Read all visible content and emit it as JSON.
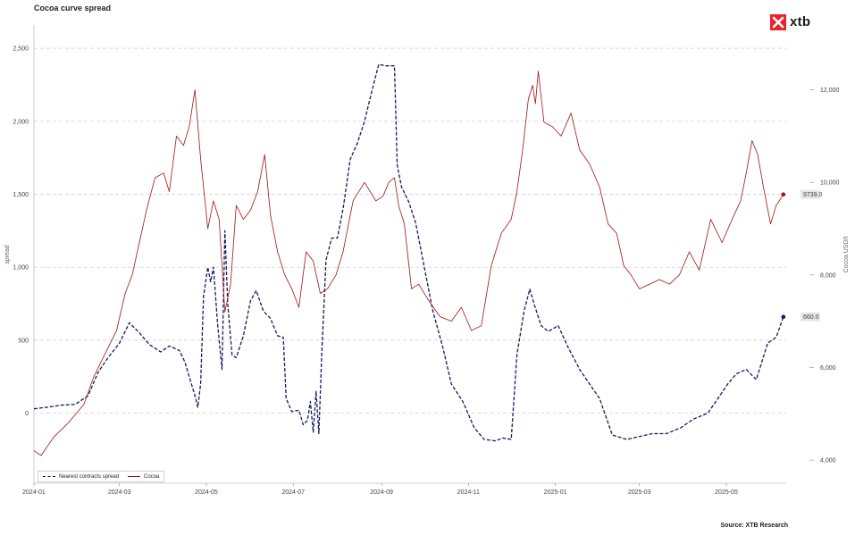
{
  "title": "Cocoa curve spread",
  "logo_text": "xtb",
  "source": "Source: XTB Research",
  "chart_data": {
    "type": "line",
    "title": "Cocoa curve spread",
    "ylabel": "spread",
    "y2label": "Cocoa USD/t",
    "xlim": [
      "2024-01-01",
      "2025-06-12"
    ],
    "ylim": [
      -480,
      2660
    ],
    "y2lim": [
      3500,
      13400
    ],
    "x_ticks": [
      "2024-01",
      "2024-03",
      "2024-05",
      "2024-07",
      "2024-09",
      "2024-11",
      "2025-01",
      "2025-03",
      "2025-05"
    ],
    "y_ticks": [
      "0",
      "500",
      "1,000",
      "1,500",
      "2,000",
      "2,500"
    ],
    "y2_ticks": [
      "4,000",
      "6,000",
      "8,000",
      "10,000",
      "12,000"
    ],
    "grid": "horizontal dashed",
    "legend_position": "bottom-left",
    "series": [
      {
        "name": "Nearest contracts spread",
        "axis": "left",
        "style": "dashed",
        "color": "#14195e",
        "end_label": "660.0",
        "x": [
          "2024-01-01",
          "2024-01-10",
          "2024-01-20",
          "2024-01-30",
          "2024-02-08",
          "2024-02-15",
          "2024-02-22",
          "2024-03-01",
          "2024-03-08",
          "2024-03-15",
          "2024-03-22",
          "2024-03-30",
          "2024-04-05",
          "2024-04-12",
          "2024-04-16",
          "2024-04-19",
          "2024-04-23",
          "2024-04-25",
          "2024-04-27",
          "2024-04-29",
          "2024-05-02",
          "2024-05-04",
          "2024-05-06",
          "2024-05-09",
          "2024-05-12",
          "2024-05-14",
          "2024-05-16",
          "2024-05-19",
          "2024-05-22",
          "2024-05-27",
          "2024-06-01",
          "2024-06-05",
          "2024-06-10",
          "2024-06-15",
          "2024-06-20",
          "2024-06-24",
          "2024-06-26",
          "2024-06-30",
          "2024-07-05",
          "2024-07-08",
          "2024-07-11",
          "2024-07-13",
          "2024-07-15",
          "2024-07-17",
          "2024-07-19",
          "2024-07-21",
          "2024-07-24",
          "2024-07-28",
          "2024-08-01",
          "2024-08-05",
          "2024-08-10",
          "2024-08-15",
          "2024-08-20",
          "2024-08-25",
          "2024-08-30",
          "2024-09-04",
          "2024-09-10",
          "2024-09-12",
          "2024-09-15",
          "2024-09-20",
          "2024-09-25",
          "2024-10-01",
          "2024-10-07",
          "2024-10-14",
          "2024-10-20",
          "2024-10-28",
          "2024-11-05",
          "2024-11-12",
          "2024-11-20",
          "2024-11-25",
          "2024-12-01",
          "2024-12-05",
          "2024-12-10",
          "2024-12-14",
          "2024-12-17",
          "2024-12-22",
          "2024-12-27",
          "2025-01-03",
          "2025-01-10",
          "2025-01-18",
          "2025-01-25",
          "2025-02-01",
          "2025-02-10",
          "2025-02-20",
          "2025-03-01",
          "2025-03-10",
          "2025-03-20",
          "2025-03-30",
          "2025-04-08",
          "2025-04-18",
          "2025-04-25",
          "2025-05-02",
          "2025-05-08",
          "2025-05-15",
          "2025-05-22",
          "2025-05-30",
          "2025-06-05",
          "2025-06-10"
        ],
        "values": [
          30,
          40,
          55,
          60,
          120,
          280,
          380,
          480,
          620,
          550,
          470,
          420,
          460,
          430,
          350,
          250,
          120,
          40,
          200,
          800,
          1000,
          900,
          1000,
          600,
          300,
          1250,
          750,
          400,
          380,
          530,
          770,
          840,
          700,
          650,
          530,
          520,
          100,
          10,
          20,
          -80,
          -50,
          80,
          -130,
          150,
          -140,
          400,
          1050,
          1200,
          1200,
          1400,
          1740,
          1850,
          2000,
          2200,
          2390,
          2380,
          2380,
          1700,
          1550,
          1450,
          1300,
          1000,
          700,
          450,
          200,
          80,
          -100,
          -180,
          -190,
          -170,
          -180,
          400,
          700,
          850,
          750,
          600,
          560,
          600,
          450,
          300,
          200,
          100,
          -150,
          -180,
          -160,
          -140,
          -140,
          -100,
          -40,
          0,
          100,
          200,
          270,
          300,
          230,
          480,
          520,
          660
        ]
      },
      {
        "name": "Cocoa",
        "axis": "right",
        "style": "solid",
        "color": "#a3120f",
        "end_label": "9739.0",
        "x": [
          "2024-01-01",
          "2024-01-06",
          "2024-01-15",
          "2024-01-25",
          "2024-02-05",
          "2024-02-12",
          "2024-02-20",
          "2024-02-28",
          "2024-03-05",
          "2024-03-10",
          "2024-03-15",
          "2024-03-20",
          "2024-03-26",
          "2024-04-01",
          "2024-04-05",
          "2024-04-10",
          "2024-04-15",
          "2024-04-19",
          "2024-04-23",
          "2024-04-27",
          "2024-05-02",
          "2024-05-06",
          "2024-05-10",
          "2024-05-14",
          "2024-05-18",
          "2024-05-22",
          "2024-05-27",
          "2024-06-01",
          "2024-06-06",
          "2024-06-11",
          "2024-06-15",
          "2024-06-20",
          "2024-06-25",
          "2024-06-30",
          "2024-07-05",
          "2024-07-10",
          "2024-07-15",
          "2024-07-20",
          "2024-07-25",
          "2024-07-31",
          "2024-08-05",
          "2024-08-12",
          "2024-08-20",
          "2024-08-28",
          "2024-09-02",
          "2024-09-06",
          "2024-09-10",
          "2024-09-13",
          "2024-09-17",
          "2024-09-22",
          "2024-09-27",
          "2024-10-05",
          "2024-10-12",
          "2024-10-20",
          "2024-10-27",
          "2024-11-03",
          "2024-11-10",
          "2024-11-17",
          "2024-11-24",
          "2024-12-01",
          "2024-12-05",
          "2024-12-09",
          "2024-12-13",
          "2024-12-16",
          "2024-12-18",
          "2024-12-20",
          "2024-12-24",
          "2024-12-30",
          "2025-01-05",
          "2025-01-12",
          "2025-01-18",
          "2025-01-25",
          "2025-02-01",
          "2025-02-07",
          "2025-02-13",
          "2025-02-18",
          "2025-02-23",
          "2025-03-01",
          "2025-03-08",
          "2025-03-15",
          "2025-03-22",
          "2025-03-29",
          "2025-04-05",
          "2025-04-12",
          "2025-04-20",
          "2025-04-28",
          "2025-05-05",
          "2025-05-11",
          "2025-05-15",
          "2025-05-19",
          "2025-05-23",
          "2025-05-27",
          "2025-06-01",
          "2025-06-05",
          "2025-06-10"
        ],
        "values": [
          4200,
          4100,
          4500,
          4800,
          5200,
          5800,
          6300,
          6800,
          7600,
          8000,
          8700,
          9400,
          10100,
          10200,
          9800,
          11000,
          10800,
          11200,
          12000,
          10500,
          9000,
          9600,
          9200,
          7200,
          7800,
          9500,
          9200,
          9400,
          9800,
          10600,
          9300,
          8500,
          8000,
          7700,
          7300,
          8500,
          8300,
          7600,
          7700,
          8000,
          8500,
          9600,
          10000,
          9600,
          9700,
          10000,
          10100,
          9500,
          9100,
          7700,
          7800,
          7400,
          7100,
          7000,
          7300,
          6800,
          6900,
          8200,
          8900,
          9200,
          9800,
          10700,
          11800,
          12100,
          11700,
          12400,
          11300,
          11200,
          11000,
          11500,
          10700,
          10400,
          9900,
          9100,
          8900,
          8200,
          8000,
          7700,
          7800,
          7900,
          7800,
          8000,
          8500,
          8100,
          9200,
          8700,
          9200,
          9600,
          10200,
          10900,
          10600,
          9900,
          9100,
          9500,
          9739
        ]
      }
    ]
  }
}
